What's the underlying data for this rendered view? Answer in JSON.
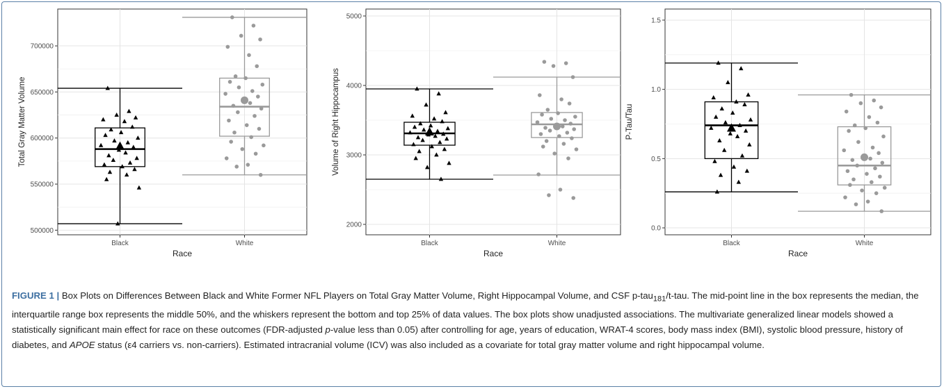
{
  "chart_data": [
    {
      "type": "box",
      "ylabel": "Total Gray Matter Volume",
      "xlabel": "Race",
      "categories": [
        "Black",
        "White"
      ],
      "ylim": [
        495000,
        740000
      ],
      "yticks": [
        500000,
        550000,
        600000,
        650000,
        700000
      ],
      "ytick_labels": [
        "500000",
        "550000",
        "600000",
        "650000",
        "700000"
      ],
      "grid": true,
      "boxes": [
        {
          "group": "Black",
          "min": 507000,
          "q1": 569000,
          "median": 588000,
          "q3": 611000,
          "max": 654000,
          "mean": 591000,
          "color": "#000000",
          "points": [
            654000,
            629000,
            625000,
            622000,
            620000,
            618000,
            612000,
            609000,
            606000,
            603000,
            600000,
            597000,
            595000,
            592000,
            590000,
            587000,
            584000,
            581000,
            578000,
            576000,
            573000,
            571000,
            569000,
            566000,
            563000,
            560000,
            555000,
            546000,
            507000
          ]
        },
        {
          "group": "White",
          "min": 560000,
          "q1": 602000,
          "median": 634000,
          "q3": 665000,
          "max": 731000,
          "mean": 641000,
          "color": "#9a9a9a",
          "points": [
            731000,
            722000,
            711000,
            707000,
            699000,
            690000,
            678000,
            667000,
            665000,
            661000,
            658000,
            655000,
            651000,
            648000,
            645000,
            641000,
            638000,
            635000,
            632000,
            628000,
            624000,
            619000,
            614000,
            610000,
            606000,
            601000,
            596000,
            592000,
            588000,
            583000,
            578000,
            571000,
            569000,
            560000
          ]
        }
      ]
    },
    {
      "type": "box",
      "ylabel": "Volume of Right Hippocampus",
      "xlabel": "Race",
      "categories": [
        "Black",
        "White"
      ],
      "ylim": [
        1850,
        5100
      ],
      "yticks": [
        2000,
        3000,
        4000,
        5000
      ],
      "ytick_labels": [
        "2000",
        "3000",
        "4000",
        "5000"
      ],
      "grid": true,
      "boxes": [
        {
          "group": "Black",
          "min": 2650,
          "q1": 3140,
          "median": 3310,
          "q3": 3470,
          "max": 3950,
          "mean": 3330,
          "color": "#000000",
          "points": [
            3950,
            3880,
            3720,
            3610,
            3560,
            3520,
            3480,
            3450,
            3420,
            3400,
            3380,
            3360,
            3340,
            3320,
            3300,
            3290,
            3270,
            3250,
            3230,
            3210,
            3180,
            3150,
            3120,
            3080,
            3050,
            3000,
            2950,
            2880,
            2820,
            2650
          ]
        },
        {
          "group": "White",
          "min": 2710,
          "q1": 3250,
          "median": 3440,
          "q3": 3610,
          "max": 4120,
          "mean": 3410,
          "color": "#9a9a9a",
          "points": [
            4340,
            4320,
            4280,
            4120,
            3860,
            3800,
            3740,
            3650,
            3600,
            3580,
            3550,
            3520,
            3500,
            3470,
            3450,
            3430,
            3410,
            3390,
            3370,
            3350,
            3320,
            3300,
            3270,
            3240,
            3200,
            3160,
            3120,
            3080,
            3020,
            2950,
            2720,
            2500,
            2420,
            2380
          ]
        }
      ]
    },
    {
      "type": "box",
      "ylabel": "P-Tau/Tau",
      "xlabel": "Race",
      "categories": [
        "Black",
        "White"
      ],
      "ylim": [
        -0.05,
        1.58
      ],
      "yticks": [
        0.0,
        0.5,
        1.0,
        1.5
      ],
      "ytick_labels": [
        "0.0",
        "0.5",
        "1.0",
        "1.5"
      ],
      "grid": true,
      "boxes": [
        {
          "group": "Black",
          "min": 0.26,
          "q1": 0.5,
          "median": 0.74,
          "q3": 0.91,
          "max": 1.19,
          "mean": 0.72,
          "color": "#000000",
          "points": [
            1.19,
            1.15,
            1.05,
            0.96,
            0.94,
            0.91,
            0.89,
            0.86,
            0.83,
            0.8,
            0.78,
            0.76,
            0.74,
            0.72,
            0.7,
            0.68,
            0.66,
            0.63,
            0.6,
            0.56,
            0.52,
            0.48,
            0.44,
            0.41,
            0.38,
            0.33,
            0.26
          ]
        },
        {
          "group": "White",
          "min": 0.12,
          "q1": 0.31,
          "median": 0.45,
          "q3": 0.73,
          "max": 0.96,
          "mean": 0.51,
          "color": "#9a9a9a",
          "points": [
            0.96,
            0.92,
            0.9,
            0.87,
            0.84,
            0.8,
            0.76,
            0.74,
            0.72,
            0.7,
            0.66,
            0.62,
            0.58,
            0.56,
            0.54,
            0.52,
            0.5,
            0.49,
            0.47,
            0.45,
            0.43,
            0.41,
            0.39,
            0.37,
            0.35,
            0.33,
            0.31,
            0.29,
            0.27,
            0.25,
            0.22,
            0.19,
            0.17,
            0.12
          ]
        }
      ]
    }
  ],
  "caption": {
    "label": "FIGURE 1",
    "separator": "|",
    "part1": "Box Plots on Differences Between Black and White Former NFL Players on Total Gray Matter Volume, Right Hippocampal Volume, and CSF p-tau",
    "sub": "181",
    "part2": "/t-tau. The mid-point line in the box represents the median, the interquartile range box represents the middle 50%, and the whiskers represent the bottom and top 25% of data values. The box plots show unadjusted associations. The multivariate generalized linear models showed a statistically significant main effect for race on these outcomes (FDR-adjusted ",
    "pval_italic": "p",
    "part3": "-value less than 0.05) after controlling for age, years of education, WRAT-4 scores, body mass index (BMI), systolic blood pressure, history of diabetes, and ",
    "apoe_italic": "APOE",
    "part4": " status (ε4 carriers vs. non-carriers). Estimated intracranial volume (ICV) was also included as a covariate for total gray matter volume and right hippocampal volume."
  }
}
